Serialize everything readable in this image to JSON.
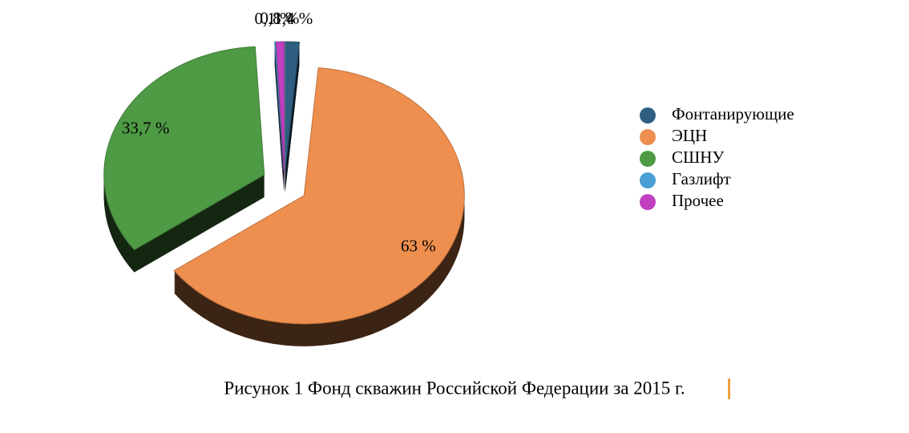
{
  "chart_data": {
    "type": "pie",
    "categories": [
      "Фонтанирующие",
      "ЭЦН",
      "СШНУ",
      "Газлифт",
      "Прочее"
    ],
    "values": [
      1.4,
      63,
      33.7,
      0.1,
      0.8
    ],
    "value_labels": [
      "1,4 %",
      "63 %",
      "33,7 %",
      "0,1 %",
      "0,8 %"
    ],
    "colors": [
      "#2e5f80",
      "#ee8f4f",
      "#4f9a45",
      "#4a9fd4",
      "#c040c0"
    ],
    "caption": "Рисунок 1 Фонд скважин Российской Федерации за 2015 г."
  }
}
